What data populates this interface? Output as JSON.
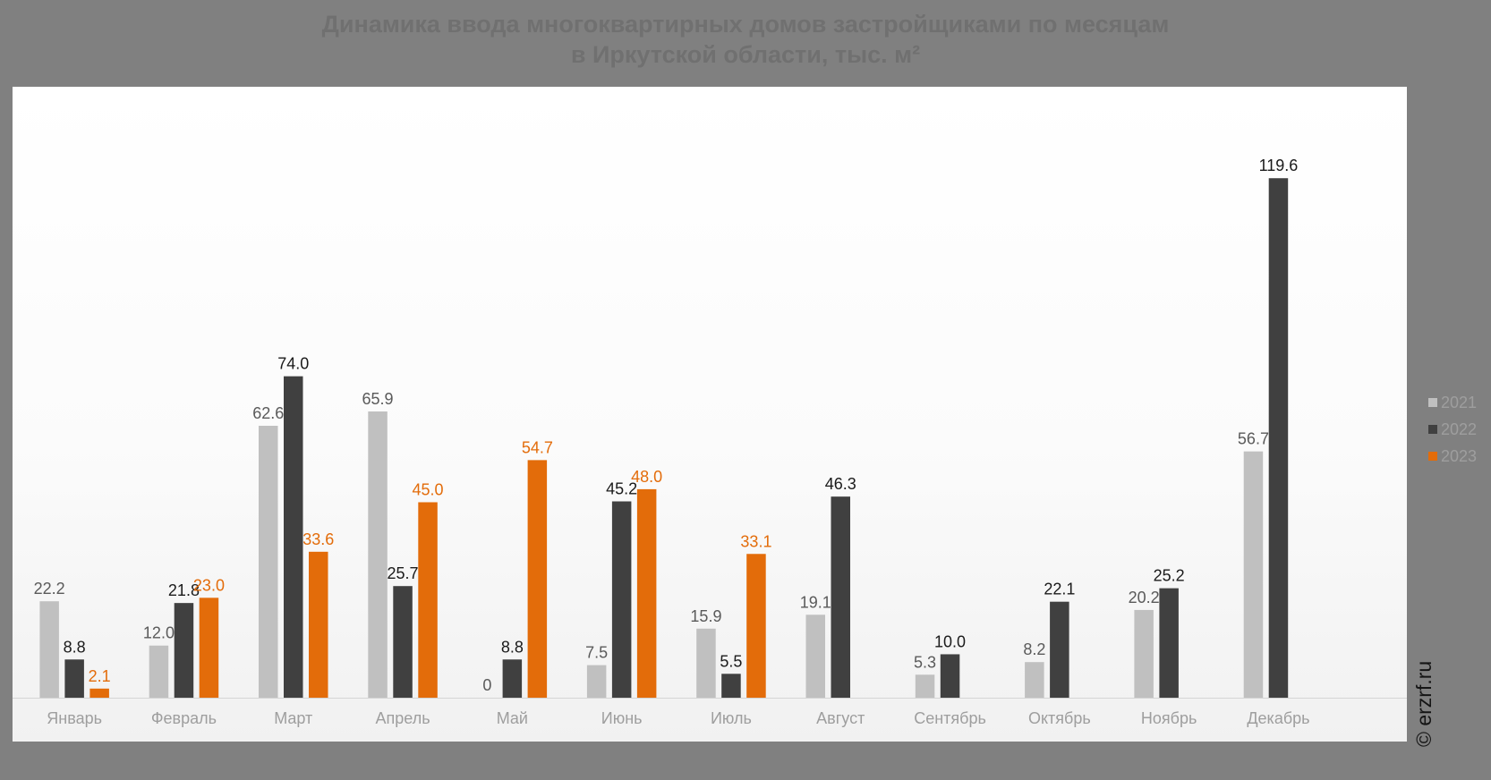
{
  "title_line1": "Динамика ввода многоквартирных домов застройщиками по месяцам",
  "title_line2": "в Иркутской области, тыс. м²",
  "watermark": "© erzrf.ru",
  "chart_data": {
    "type": "bar",
    "title": "Динамика ввода многоквартирных домов застройщиками по месяцам в Иркутской области, тыс. м²",
    "xlabel": "",
    "ylabel": "",
    "ylim": [
      0,
      140
    ],
    "grid": false,
    "legend_position": "right",
    "categories": [
      "Январь",
      "Февраль",
      "Март",
      "Апрель",
      "Май",
      "Июнь",
      "Июль",
      "Август",
      "Сентябрь",
      "Октябрь",
      "Ноябрь",
      "Декабрь"
    ],
    "series": [
      {
        "name": "2021",
        "color": "#c0c0c0",
        "label_color": "#5a5a5a",
        "values": [
          22.2,
          12.0,
          62.6,
          65.9,
          0,
          7.5,
          15.9,
          19.1,
          5.3,
          8.2,
          20.2,
          56.7
        ],
        "labels": [
          "22.2",
          "12.0",
          "62.6",
          "65.9",
          "0",
          "7.5",
          "15.9",
          "19.1",
          "5.3",
          "8.2",
          "20.2",
          "56.7"
        ]
      },
      {
        "name": "2022",
        "color": "#404040",
        "label_color": "#1a1a1a",
        "values": [
          8.8,
          21.8,
          74.0,
          25.7,
          8.8,
          45.2,
          5.5,
          46.3,
          10.0,
          22.1,
          25.2,
          119.6
        ],
        "labels": [
          "8.8",
          "21.8",
          "74.0",
          "25.7",
          "8.8",
          "45.2",
          "5.5",
          "46.3",
          "10.0",
          "22.1",
          "25.2",
          "119.6"
        ]
      },
      {
        "name": "2023",
        "color": "#e36c0a",
        "label_color": "#e36c0a",
        "values": [
          2.1,
          23.0,
          33.6,
          45.0,
          54.7,
          48.0,
          33.1,
          null,
          null,
          null,
          null,
          null
        ],
        "labels": [
          "2.1",
          "23.0",
          "33.6",
          "45.0",
          "54.7",
          "48.0",
          "33.1",
          null,
          null,
          null,
          null,
          null
        ]
      }
    ]
  }
}
